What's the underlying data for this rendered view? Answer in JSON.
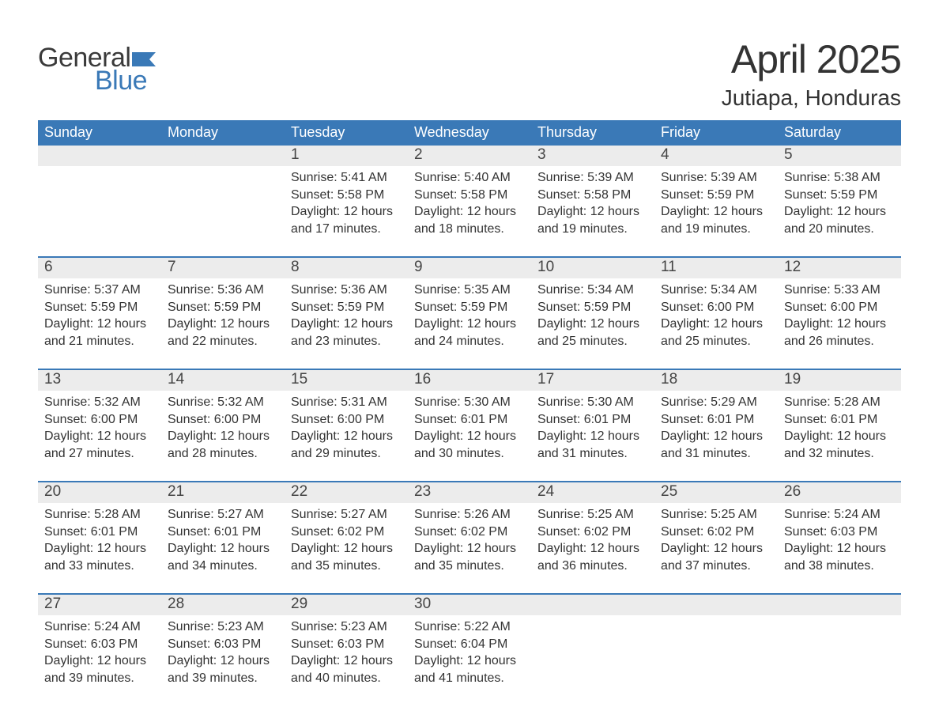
{
  "logo": {
    "text_general": "General",
    "text_blue": "Blue",
    "flag_color": "#3a79b7",
    "general_color": "#3a3a3a"
  },
  "header": {
    "month_year": "April 2025",
    "location": "Jutiapa, Honduras"
  },
  "styling": {
    "header_bg": "#3a79b7",
    "header_text": "#ffffff",
    "daynum_bg": "#ececec",
    "row_border": "#3a79b7",
    "body_text": "#333333",
    "page_bg": "#ffffff",
    "weekday_fontsize": 18,
    "daynum_fontsize": 19,
    "body_fontsize": 16,
    "title_fontsize": 50,
    "location_fontsize": 28
  },
  "weekdays": [
    "Sunday",
    "Monday",
    "Tuesday",
    "Wednesday",
    "Thursday",
    "Friday",
    "Saturday"
  ],
  "labels": {
    "sunrise": "Sunrise:",
    "sunset": "Sunset:",
    "daylight": "Daylight:"
  },
  "weeks": [
    [
      {
        "day": null
      },
      {
        "day": null
      },
      {
        "day": 1,
        "sunrise": "5:41 AM",
        "sunset": "5:58 PM",
        "daylight": "12 hours and 17 minutes."
      },
      {
        "day": 2,
        "sunrise": "5:40 AM",
        "sunset": "5:58 PM",
        "daylight": "12 hours and 18 minutes."
      },
      {
        "day": 3,
        "sunrise": "5:39 AM",
        "sunset": "5:58 PM",
        "daylight": "12 hours and 19 minutes."
      },
      {
        "day": 4,
        "sunrise": "5:39 AM",
        "sunset": "5:59 PM",
        "daylight": "12 hours and 19 minutes."
      },
      {
        "day": 5,
        "sunrise": "5:38 AM",
        "sunset": "5:59 PM",
        "daylight": "12 hours and 20 minutes."
      }
    ],
    [
      {
        "day": 6,
        "sunrise": "5:37 AM",
        "sunset": "5:59 PM",
        "daylight": "12 hours and 21 minutes."
      },
      {
        "day": 7,
        "sunrise": "5:36 AM",
        "sunset": "5:59 PM",
        "daylight": "12 hours and 22 minutes."
      },
      {
        "day": 8,
        "sunrise": "5:36 AM",
        "sunset": "5:59 PM",
        "daylight": "12 hours and 23 minutes."
      },
      {
        "day": 9,
        "sunrise": "5:35 AM",
        "sunset": "5:59 PM",
        "daylight": "12 hours and 24 minutes."
      },
      {
        "day": 10,
        "sunrise": "5:34 AM",
        "sunset": "5:59 PM",
        "daylight": "12 hours and 25 minutes."
      },
      {
        "day": 11,
        "sunrise": "5:34 AM",
        "sunset": "6:00 PM",
        "daylight": "12 hours and 25 minutes."
      },
      {
        "day": 12,
        "sunrise": "5:33 AM",
        "sunset": "6:00 PM",
        "daylight": "12 hours and 26 minutes."
      }
    ],
    [
      {
        "day": 13,
        "sunrise": "5:32 AM",
        "sunset": "6:00 PM",
        "daylight": "12 hours and 27 minutes."
      },
      {
        "day": 14,
        "sunrise": "5:32 AM",
        "sunset": "6:00 PM",
        "daylight": "12 hours and 28 minutes."
      },
      {
        "day": 15,
        "sunrise": "5:31 AM",
        "sunset": "6:00 PM",
        "daylight": "12 hours and 29 minutes."
      },
      {
        "day": 16,
        "sunrise": "5:30 AM",
        "sunset": "6:01 PM",
        "daylight": "12 hours and 30 minutes."
      },
      {
        "day": 17,
        "sunrise": "5:30 AM",
        "sunset": "6:01 PM",
        "daylight": "12 hours and 31 minutes."
      },
      {
        "day": 18,
        "sunrise": "5:29 AM",
        "sunset": "6:01 PM",
        "daylight": "12 hours and 31 minutes."
      },
      {
        "day": 19,
        "sunrise": "5:28 AM",
        "sunset": "6:01 PM",
        "daylight": "12 hours and 32 minutes."
      }
    ],
    [
      {
        "day": 20,
        "sunrise": "5:28 AM",
        "sunset": "6:01 PM",
        "daylight": "12 hours and 33 minutes."
      },
      {
        "day": 21,
        "sunrise": "5:27 AM",
        "sunset": "6:01 PM",
        "daylight": "12 hours and 34 minutes."
      },
      {
        "day": 22,
        "sunrise": "5:27 AM",
        "sunset": "6:02 PM",
        "daylight": "12 hours and 35 minutes."
      },
      {
        "day": 23,
        "sunrise": "5:26 AM",
        "sunset": "6:02 PM",
        "daylight": "12 hours and 35 minutes."
      },
      {
        "day": 24,
        "sunrise": "5:25 AM",
        "sunset": "6:02 PM",
        "daylight": "12 hours and 36 minutes."
      },
      {
        "day": 25,
        "sunrise": "5:25 AM",
        "sunset": "6:02 PM",
        "daylight": "12 hours and 37 minutes."
      },
      {
        "day": 26,
        "sunrise": "5:24 AM",
        "sunset": "6:03 PM",
        "daylight": "12 hours and 38 minutes."
      }
    ],
    [
      {
        "day": 27,
        "sunrise": "5:24 AM",
        "sunset": "6:03 PM",
        "daylight": "12 hours and 39 minutes."
      },
      {
        "day": 28,
        "sunrise": "5:23 AM",
        "sunset": "6:03 PM",
        "daylight": "12 hours and 39 minutes."
      },
      {
        "day": 29,
        "sunrise": "5:23 AM",
        "sunset": "6:03 PM",
        "daylight": "12 hours and 40 minutes."
      },
      {
        "day": 30,
        "sunrise": "5:22 AM",
        "sunset": "6:04 PM",
        "daylight": "12 hours and 41 minutes."
      },
      {
        "day": null
      },
      {
        "day": null
      },
      {
        "day": null
      }
    ]
  ]
}
